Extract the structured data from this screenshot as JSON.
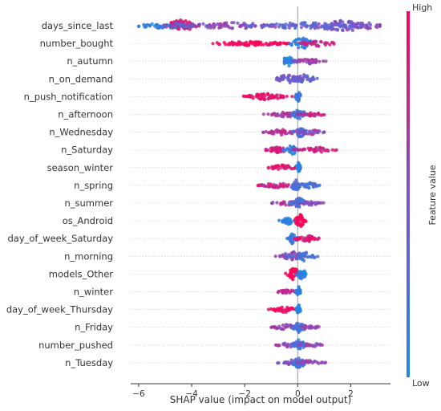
{
  "chart_data": {
    "type": "scatter",
    "subtype": "shap-beeswarm",
    "xlabel": "SHAP value (impact on model output)",
    "xlim": [
      -6.3,
      3.5
    ],
    "xticks": [
      -6,
      -4,
      -2,
      0,
      2
    ],
    "colorbar": {
      "label": "Feature value",
      "high": "High",
      "low": "Low",
      "low_color": "#1e88e5",
      "high_color": "#ff0052"
    },
    "features": [
      {
        "name": "days_since_last",
        "min": -6.0,
        "max": 3.1,
        "clusters": [
          {
            "x": -4.4,
            "spread": 0.35,
            "count": 70,
            "color": 0.85,
            "height": 1.0
          },
          {
            "x": -5.0,
            "spread": 0.7,
            "count": 50,
            "color": 0.1,
            "height": 0.45
          },
          {
            "x": -2.5,
            "spread": 1.5,
            "count": 90,
            "color": 0.55,
            "height": 0.5
          },
          {
            "x": 1.8,
            "spread": 0.8,
            "count": 110,
            "color": 0.5,
            "height": 0.9
          },
          {
            "x": 0.2,
            "spread": 1.0,
            "count": 60,
            "color": 0.3,
            "height": 0.55
          }
        ]
      },
      {
        "name": "number_bought",
        "min": -3.2,
        "max": 1.5,
        "clusters": [
          {
            "x": -1.8,
            "spread": 0.9,
            "count": 90,
            "color": 0.95,
            "height": 0.35
          },
          {
            "x": 0.15,
            "spread": 0.25,
            "count": 40,
            "color": 0.1,
            "height": 1.0
          },
          {
            "x": 0.8,
            "spread": 0.4,
            "count": 35,
            "color": 0.75,
            "height": 0.45
          }
        ]
      },
      {
        "name": "n_autumn",
        "min": -0.5,
        "max": 1.1,
        "clusters": [
          {
            "x": -0.35,
            "spread": 0.15,
            "count": 35,
            "color": 0.05,
            "height": 0.8
          },
          {
            "x": 0.4,
            "spread": 0.3,
            "count": 40,
            "color": 0.6,
            "height": 0.45
          }
        ]
      },
      {
        "name": "n_on_demand",
        "min": -0.8,
        "max": 1.0,
        "clusters": [
          {
            "x": -0.35,
            "spread": 0.25,
            "count": 45,
            "color": 0.45,
            "height": 0.8
          },
          {
            "x": 0.25,
            "spread": 0.25,
            "count": 40,
            "color": 0.4,
            "height": 0.7
          }
        ]
      },
      {
        "name": "n_push_notification",
        "min": -2.1,
        "max": 0.1,
        "clusters": [
          {
            "x": -1.2,
            "spread": 0.45,
            "count": 60,
            "color": 0.9,
            "height": 0.55
          },
          {
            "x": 0.02,
            "spread": 0.06,
            "count": 25,
            "color": 0.1,
            "height": 0.9
          }
        ]
      },
      {
        "name": "n_afternoon",
        "min": -1.3,
        "max": 1.0,
        "clusters": [
          {
            "x": -0.4,
            "spread": 0.45,
            "count": 45,
            "color": 0.65,
            "height": 0.45
          },
          {
            "x": 0.05,
            "spread": 0.15,
            "count": 35,
            "color": 0.2,
            "height": 0.85
          },
          {
            "x": 0.6,
            "spread": 0.25,
            "count": 25,
            "color": 0.8,
            "height": 0.4
          }
        ]
      },
      {
        "name": "n_Wednesday",
        "min": -1.3,
        "max": 1.0,
        "clusters": [
          {
            "x": -0.6,
            "spread": 0.35,
            "count": 40,
            "color": 0.7,
            "height": 0.45
          },
          {
            "x": 0.1,
            "spread": 0.15,
            "count": 35,
            "color": 0.25,
            "height": 0.85
          },
          {
            "x": 0.5,
            "spread": 0.25,
            "count": 25,
            "color": 0.6,
            "height": 0.4
          }
        ]
      },
      {
        "name": "n_Saturday",
        "min": -1.2,
        "max": 1.5,
        "clusters": [
          {
            "x": -0.8,
            "spread": 0.3,
            "count": 35,
            "color": 0.8,
            "height": 0.45
          },
          {
            "x": -0.2,
            "spread": 0.15,
            "count": 30,
            "color": 0.1,
            "height": 0.85
          },
          {
            "x": 0.7,
            "spread": 0.4,
            "count": 40,
            "color": 0.8,
            "height": 0.45
          }
        ]
      },
      {
        "name": "season_winter",
        "min": -1.1,
        "max": 0.1,
        "clusters": [
          {
            "x": -0.55,
            "spread": 0.3,
            "count": 40,
            "color": 0.9,
            "height": 0.45
          },
          {
            "x": 0.03,
            "spread": 0.05,
            "count": 25,
            "color": 0.05,
            "height": 0.85
          }
        ]
      },
      {
        "name": "n_spring",
        "min": -1.5,
        "max": 0.9,
        "clusters": [
          {
            "x": -0.8,
            "spread": 0.35,
            "count": 40,
            "color": 0.8,
            "height": 0.4
          },
          {
            "x": -0.05,
            "spread": 0.15,
            "count": 35,
            "color": 0.25,
            "height": 0.85
          },
          {
            "x": 0.45,
            "spread": 0.2,
            "count": 25,
            "color": 0.2,
            "height": 0.45
          }
        ]
      },
      {
        "name": "n_summer",
        "min": -1.0,
        "max": 1.0,
        "clusters": [
          {
            "x": -0.45,
            "spread": 0.3,
            "count": 35,
            "color": 0.65,
            "height": 0.45
          },
          {
            "x": 0.05,
            "spread": 0.15,
            "count": 35,
            "color": 0.25,
            "height": 0.85
          },
          {
            "x": 0.55,
            "spread": 0.2,
            "count": 20,
            "color": 0.55,
            "height": 0.4
          }
        ]
      },
      {
        "name": "os_Android",
        "min": -0.7,
        "max": 0.45,
        "clusters": [
          {
            "x": -0.35,
            "spread": 0.15,
            "count": 35,
            "color": 0.05,
            "height": 0.55
          },
          {
            "x": 0.1,
            "spread": 0.12,
            "count": 45,
            "color": 0.97,
            "height": 1.0
          }
        ]
      },
      {
        "name": "day_of_week_Saturday",
        "min": -0.4,
        "max": 0.8,
        "clusters": [
          {
            "x": -0.2,
            "spread": 0.1,
            "count": 30,
            "color": 0.1,
            "height": 0.85
          },
          {
            "x": 0.35,
            "spread": 0.25,
            "count": 45,
            "color": 0.85,
            "height": 0.55
          }
        ]
      },
      {
        "name": "n_morning",
        "min": -0.9,
        "max": 0.9,
        "clusters": [
          {
            "x": -0.2,
            "spread": 0.25,
            "count": 40,
            "color": 0.55,
            "height": 0.8
          },
          {
            "x": 0.25,
            "spread": 0.25,
            "count": 35,
            "color": 0.2,
            "height": 0.75
          }
        ]
      },
      {
        "name": "models_Other",
        "min": -0.8,
        "max": 0.6,
        "clusters": [
          {
            "x": -0.15,
            "spread": 0.15,
            "count": 40,
            "color": 0.97,
            "height": 1.0
          },
          {
            "x": 0.15,
            "spread": 0.12,
            "count": 30,
            "color": 0.05,
            "height": 0.85
          }
        ]
      },
      {
        "name": "n_winter",
        "min": -0.8,
        "max": 0.1,
        "clusters": [
          {
            "x": -0.4,
            "spread": 0.2,
            "count": 30,
            "color": 0.75,
            "height": 0.4
          },
          {
            "x": 0.03,
            "spread": 0.05,
            "count": 25,
            "color": 0.05,
            "height": 0.85
          }
        ]
      },
      {
        "name": "day_of_week_Thursday",
        "min": -1.1,
        "max": 0.1,
        "clusters": [
          {
            "x": -0.5,
            "spread": 0.3,
            "count": 40,
            "color": 0.9,
            "height": 0.45
          },
          {
            "x": 0.03,
            "spread": 0.05,
            "count": 25,
            "color": 0.05,
            "height": 0.85
          }
        ]
      },
      {
        "name": "n_Friday",
        "min": -1.0,
        "max": 0.8,
        "clusters": [
          {
            "x": -0.4,
            "spread": 0.3,
            "count": 35,
            "color": 0.6,
            "height": 0.45
          },
          {
            "x": 0.05,
            "spread": 0.15,
            "count": 35,
            "color": 0.2,
            "height": 0.85
          },
          {
            "x": 0.45,
            "spread": 0.2,
            "count": 20,
            "color": 0.65,
            "height": 0.4
          }
        ]
      },
      {
        "name": "number_pushed",
        "min": -0.9,
        "max": 1.1,
        "clusters": [
          {
            "x": -0.3,
            "spread": 0.25,
            "count": 30,
            "color": 0.6,
            "height": 0.45
          },
          {
            "x": 0.05,
            "spread": 0.15,
            "count": 35,
            "color": 0.2,
            "height": 0.85
          },
          {
            "x": 0.5,
            "spread": 0.25,
            "count": 20,
            "color": 0.6,
            "height": 0.4
          }
        ]
      },
      {
        "name": "n_Tuesday",
        "min": -0.9,
        "max": 1.2,
        "clusters": [
          {
            "x": -0.25,
            "spread": 0.25,
            "count": 30,
            "color": 0.55,
            "height": 0.45
          },
          {
            "x": 0.05,
            "spread": 0.15,
            "count": 35,
            "color": 0.2,
            "height": 0.85
          },
          {
            "x": 0.45,
            "spread": 0.25,
            "count": 25,
            "color": 0.6,
            "height": 0.45
          }
        ]
      }
    ]
  }
}
